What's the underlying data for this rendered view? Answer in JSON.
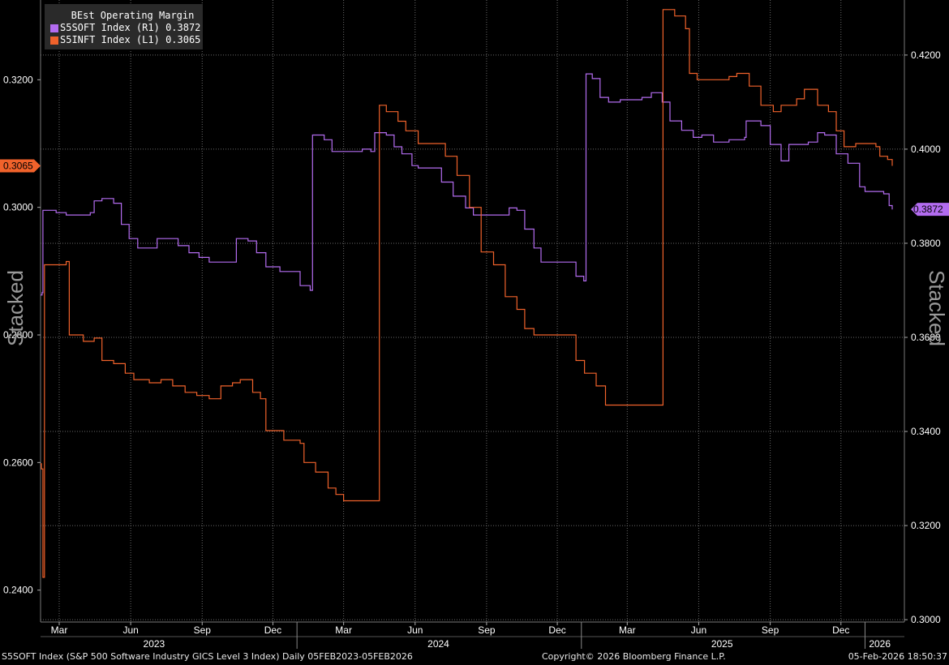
{
  "chart_data": {
    "type": "line",
    "title": "BEst Operating Margin",
    "x_range": [
      "2023-02-05",
      "2026-02-05"
    ],
    "series": [
      {
        "name": "S5SOFT Index  (R1)",
        "last_value": "0.3872",
        "axis": "right",
        "color": "#b36cf0",
        "points": [
          [
            "2023-02-05",
            0.369
          ],
          [
            "2023-02-07",
            0.3695
          ],
          [
            "2023-02-08",
            0.387
          ],
          [
            "2023-02-20",
            0.387
          ],
          [
            "2023-02-25",
            0.3865
          ],
          [
            "2023-03-05",
            0.3865
          ],
          [
            "2023-03-10",
            0.386
          ],
          [
            "2023-04-10",
            0.3865
          ],
          [
            "2023-04-15",
            0.389
          ],
          [
            "2023-04-25",
            0.3895
          ],
          [
            "2023-05-10",
            0.3885
          ],
          [
            "2023-05-20",
            0.384
          ],
          [
            "2023-05-30",
            0.381
          ],
          [
            "2023-06-10",
            0.379
          ],
          [
            "2023-06-25",
            0.379
          ],
          [
            "2023-07-05",
            0.381
          ],
          [
            "2023-07-20",
            0.381
          ],
          [
            "2023-08-01",
            0.3795
          ],
          [
            "2023-08-15",
            0.378
          ],
          [
            "2023-08-28",
            0.377
          ],
          [
            "2023-09-10",
            0.376
          ],
          [
            "2023-10-10",
            0.376
          ],
          [
            "2023-10-15",
            0.381
          ],
          [
            "2023-10-30",
            0.3805
          ],
          [
            "2023-11-10",
            0.378
          ],
          [
            "2023-11-22",
            0.375
          ],
          [
            "2023-12-10",
            0.374
          ],
          [
            "2023-12-28",
            0.374
          ],
          [
            "2024-01-05",
            0.371
          ],
          [
            "2024-01-18",
            0.37
          ],
          [
            "2024-01-21",
            0.403
          ],
          [
            "2024-02-05",
            0.402
          ],
          [
            "2024-02-15",
            0.3995
          ],
          [
            "2024-03-10",
            0.3995
          ],
          [
            "2024-03-25",
            0.4
          ],
          [
            "2024-04-05",
            0.3995
          ],
          [
            "2024-04-10",
            0.4035
          ],
          [
            "2024-04-25",
            0.403
          ],
          [
            "2024-05-05",
            0.4005
          ],
          [
            "2024-05-15",
            0.399
          ],
          [
            "2024-05-28",
            0.3965
          ],
          [
            "2024-06-05",
            0.396
          ],
          [
            "2024-06-25",
            0.396
          ],
          [
            "2024-07-05",
            0.393
          ],
          [
            "2024-07-20",
            0.39
          ],
          [
            "2024-08-05",
            0.3875
          ],
          [
            "2024-08-15",
            0.386
          ],
          [
            "2024-09-20",
            0.386
          ],
          [
            "2024-09-30",
            0.3875
          ],
          [
            "2024-10-10",
            0.387
          ],
          [
            "2024-10-20",
            0.383
          ],
          [
            "2024-11-01",
            0.379
          ],
          [
            "2024-11-10",
            0.376
          ],
          [
            "2024-12-15",
            0.376
          ],
          [
            "2024-12-25",
            0.373
          ],
          [
            "2025-01-04",
            0.372
          ],
          [
            "2025-01-07",
            0.416
          ],
          [
            "2025-01-15",
            0.415
          ],
          [
            "2025-01-25",
            0.411
          ],
          [
            "2025-02-05",
            0.41
          ],
          [
            "2025-02-20",
            0.4105
          ],
          [
            "2025-03-20",
            0.411
          ],
          [
            "2025-04-01",
            0.412
          ],
          [
            "2025-04-15",
            0.41
          ],
          [
            "2025-04-25",
            0.406
          ],
          [
            "2025-05-10",
            0.404
          ],
          [
            "2025-05-25",
            0.4025
          ],
          [
            "2025-06-05",
            0.403
          ],
          [
            "2025-06-20",
            0.4015
          ],
          [
            "2025-07-10",
            0.402
          ],
          [
            "2025-07-30",
            0.4025
          ],
          [
            "2025-08-01",
            0.406
          ],
          [
            "2025-08-20",
            0.405
          ],
          [
            "2025-09-01",
            0.401
          ],
          [
            "2025-09-15",
            0.3975
          ],
          [
            "2025-09-25",
            0.401
          ],
          [
            "2025-10-20",
            0.4015
          ],
          [
            "2025-11-01",
            0.4035
          ],
          [
            "2025-11-10",
            0.403
          ],
          [
            "2025-11-25",
            0.399
          ],
          [
            "2025-12-10",
            0.397
          ],
          [
            "2025-12-25",
            0.392
          ],
          [
            "2026-01-01",
            0.391
          ],
          [
            "2026-01-25",
            0.3905
          ],
          [
            "2026-02-01",
            0.388
          ],
          [
            "2026-02-05",
            0.3872
          ]
        ]
      },
      {
        "name": "S5INFT Index  (L1)",
        "last_value": "0.3065",
        "axis": "left",
        "color": "#f0622b",
        "points": [
          [
            "2023-02-05",
            0.2598
          ],
          [
            "2023-02-06",
            0.259
          ],
          [
            "2023-02-08",
            0.242
          ],
          [
            "2023-02-10",
            0.291
          ],
          [
            "2023-03-10",
            0.2915
          ],
          [
            "2023-03-14",
            0.28
          ],
          [
            "2023-04-01",
            0.279
          ],
          [
            "2023-04-15",
            0.2795
          ],
          [
            "2023-04-25",
            0.276
          ],
          [
            "2023-05-10",
            0.2755
          ],
          [
            "2023-05-25",
            0.274
          ],
          [
            "2023-06-05",
            0.273
          ],
          [
            "2023-06-25",
            0.2725
          ],
          [
            "2023-07-10",
            0.273
          ],
          [
            "2023-07-25",
            0.272
          ],
          [
            "2023-08-10",
            0.271
          ],
          [
            "2023-08-25",
            0.2705
          ],
          [
            "2023-09-10",
            0.27
          ],
          [
            "2023-09-25",
            0.272
          ],
          [
            "2023-10-10",
            0.2725
          ],
          [
            "2023-10-20",
            0.273
          ],
          [
            "2023-11-05",
            0.271
          ],
          [
            "2023-11-15",
            0.27
          ],
          [
            "2023-11-22",
            0.265
          ],
          [
            "2023-12-15",
            0.2635
          ],
          [
            "2024-01-05",
            0.263
          ],
          [
            "2024-01-10",
            0.26
          ],
          [
            "2024-01-25",
            0.2585
          ],
          [
            "2024-02-10",
            0.256
          ],
          [
            "2024-02-20",
            0.255
          ],
          [
            "2024-03-01",
            0.254
          ],
          [
            "2024-04-15",
            0.254
          ],
          [
            "2024-04-16",
            0.316
          ],
          [
            "2024-04-25",
            0.315
          ],
          [
            "2024-05-10",
            0.3135
          ],
          [
            "2024-05-20",
            0.312
          ],
          [
            "2024-06-05",
            0.31
          ],
          [
            "2024-06-25",
            0.31
          ],
          [
            "2024-07-10",
            0.308
          ],
          [
            "2024-07-25",
            0.305
          ],
          [
            "2024-08-10",
            0.3
          ],
          [
            "2024-08-25",
            0.293
          ],
          [
            "2024-09-10",
            0.291
          ],
          [
            "2024-09-25",
            0.286
          ],
          [
            "2024-10-10",
            0.284
          ],
          [
            "2024-10-20",
            0.281
          ],
          [
            "2024-11-01",
            0.28
          ],
          [
            "2024-12-15",
            0.28
          ],
          [
            "2024-12-25",
            0.276
          ],
          [
            "2025-01-05",
            0.274
          ],
          [
            "2025-01-20",
            0.272
          ],
          [
            "2025-02-01",
            0.269
          ],
          [
            "2025-04-15",
            0.269
          ],
          [
            "2025-04-16",
            0.331
          ],
          [
            "2025-05-01",
            0.33
          ],
          [
            "2025-05-15",
            0.328
          ],
          [
            "2025-05-20",
            0.321
          ],
          [
            "2025-05-30",
            0.32
          ],
          [
            "2025-06-30",
            0.32
          ],
          [
            "2025-07-10",
            0.3205
          ],
          [
            "2025-07-20",
            0.321
          ],
          [
            "2025-08-05",
            0.319
          ],
          [
            "2025-08-20",
            0.316
          ],
          [
            "2025-09-05",
            0.315
          ],
          [
            "2025-09-15",
            0.316
          ],
          [
            "2025-10-05",
            0.317
          ],
          [
            "2025-10-15",
            0.3185
          ],
          [
            "2025-11-01",
            0.316
          ],
          [
            "2025-11-15",
            0.315
          ],
          [
            "2025-11-25",
            0.312
          ],
          [
            "2025-12-05",
            0.3095
          ],
          [
            "2025-12-20",
            0.31
          ],
          [
            "2026-01-15",
            0.3095
          ],
          [
            "2026-01-20",
            0.308
          ],
          [
            "2026-01-30",
            0.3075
          ],
          [
            "2026-02-05",
            0.3065
          ]
        ]
      }
    ],
    "left_axis": {
      "min": 0.235,
      "max": 0.3325,
      "ticks": [
        {
          "v": 0.24,
          "label": "0.2400"
        },
        {
          "v": 0.26,
          "label": "0.2600"
        },
        {
          "v": 0.28,
          "label": "0.2800"
        },
        {
          "v": 0.3,
          "label": "0.3000"
        },
        {
          "v": 0.32,
          "label": "0.3200"
        }
      ],
      "badge": {
        "v": 0.3065,
        "label": "0.3065",
        "color": "#f0622b"
      },
      "side_label": "Stacked"
    },
    "right_axis": {
      "min": 0.2995,
      "max": 0.4317,
      "ticks": [
        {
          "v": 0.3,
          "label": "0.3000"
        },
        {
          "v": 0.32,
          "label": "0.3200"
        },
        {
          "v": 0.34,
          "label": "0.3400"
        },
        {
          "v": 0.36,
          "label": "0.3600"
        },
        {
          "v": 0.38,
          "label": "0.3800"
        },
        {
          "v": 0.4,
          "label": "0.4000"
        },
        {
          "v": 0.42,
          "label": "0.4200"
        }
      ],
      "badge": {
        "v": 0.3872,
        "label": "0.3872",
        "color": "#b36cf0"
      },
      "side_label": "Stacked"
    },
    "x_ticks_month": [
      {
        "date": "2023-03-01",
        "label": "Mar"
      },
      {
        "date": "2023-06-01",
        "label": "Jun"
      },
      {
        "date": "2023-09-01",
        "label": "Sep"
      },
      {
        "date": "2023-12-01",
        "label": "Dec"
      },
      {
        "date": "2024-03-01",
        "label": "Mar"
      },
      {
        "date": "2024-06-01",
        "label": "Jun"
      },
      {
        "date": "2024-09-01",
        "label": "Sep"
      },
      {
        "date": "2024-12-01",
        "label": "Dec"
      },
      {
        "date": "2025-03-01",
        "label": "Mar"
      },
      {
        "date": "2025-06-01",
        "label": "Jun"
      },
      {
        "date": "2025-09-01",
        "label": "Sep"
      },
      {
        "date": "2025-12-01",
        "label": "Dec"
      }
    ],
    "x_ticks_year": [
      {
        "date": "2023-07-01",
        "label": "2023"
      },
      {
        "date": "2024-07-01",
        "label": "2024"
      },
      {
        "date": "2025-07-01",
        "label": "2025"
      },
      {
        "date": "2026-01-20",
        "label": "2026"
      }
    ],
    "year_separators": [
      "2024-01-01",
      "2025-01-01",
      "2026-01-01"
    ],
    "grid": true
  },
  "footer": {
    "source": "S5SOFT Index (S&P 500 Software Industry GICS Level 3 Index) Daily 05FEB2023-05FEB2026",
    "copyright": "Copyright© 2026 Bloomberg Finance L.P.",
    "timestamp": "05-Feb-2026 18:50:37"
  }
}
